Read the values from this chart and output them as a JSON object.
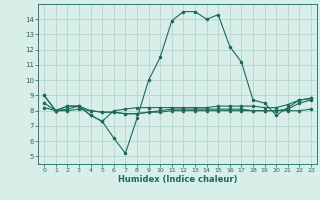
{
  "title": "",
  "xlabel": "Humidex (Indice chaleur)",
  "ylabel": "",
  "xlim": [
    -0.5,
    23.5
  ],
  "ylim": [
    4.5,
    15.0
  ],
  "xticks": [
    0,
    1,
    2,
    3,
    4,
    5,
    6,
    7,
    8,
    9,
    10,
    11,
    12,
    13,
    14,
    15,
    16,
    17,
    18,
    19,
    20,
    21,
    22,
    23
  ],
  "yticks": [
    5,
    6,
    7,
    8,
    9,
    10,
    11,
    12,
    13,
    14
  ],
  "bg_color": "#d8eee8",
  "line_color": "#1a6b5a",
  "grid_color": "#b8d8d0",
  "lines": [
    [
      9.0,
      8.0,
      8.3,
      8.3,
      7.7,
      7.3,
      6.2,
      5.2,
      7.5,
      10.0,
      11.5,
      13.9,
      14.5,
      14.5,
      14.0,
      14.3,
      12.2,
      11.2,
      8.7,
      8.5,
      7.7,
      8.2,
      8.7,
      8.8
    ],
    [
      9.0,
      8.0,
      8.3,
      8.3,
      7.7,
      7.3,
      8.0,
      8.1,
      8.2,
      8.2,
      8.2,
      8.2,
      8.2,
      8.2,
      8.2,
      8.3,
      8.3,
      8.3,
      8.3,
      8.2,
      8.2,
      8.4,
      8.7,
      8.8
    ],
    [
      8.5,
      8.0,
      8.1,
      8.3,
      8.0,
      7.9,
      7.9,
      7.8,
      7.8,
      7.9,
      8.0,
      8.1,
      8.1,
      8.1,
      8.1,
      8.1,
      8.1,
      8.1,
      8.0,
      8.0,
      8.0,
      8.1,
      8.5,
      8.7
    ],
    [
      8.2,
      8.0,
      8.0,
      8.1,
      8.0,
      7.9,
      7.9,
      7.8,
      7.8,
      7.9,
      7.9,
      8.0,
      8.0,
      8.0,
      8.0,
      8.0,
      8.0,
      8.0,
      8.0,
      8.0,
      8.0,
      8.0,
      8.0,
      8.1
    ]
  ]
}
